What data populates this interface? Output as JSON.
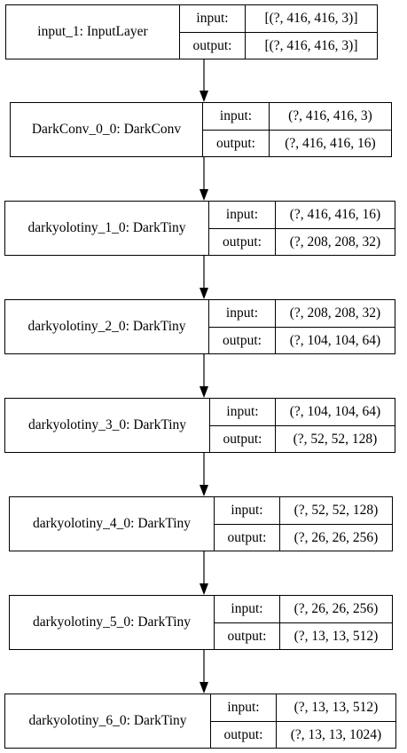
{
  "diagram": {
    "port_labels": {
      "input": "input:",
      "output": "output:"
    },
    "nodes": [
      {
        "name": "input_1: InputLayer",
        "input": "[(?, 416, 416, 3)]",
        "output": "[(?, 416, 416, 3)]"
      },
      {
        "name": "DarkConv_0_0: DarkConv",
        "input": "(?, 416, 416, 3)",
        "output": "(?, 416, 416, 16)"
      },
      {
        "name": "darkyolotiny_1_0: DarkTiny",
        "input": "(?, 416, 416, 16)",
        "output": "(?, 208, 208, 32)"
      },
      {
        "name": "darkyolotiny_2_0: DarkTiny",
        "input": "(?, 208, 208, 32)",
        "output": "(?, 104, 104, 64)"
      },
      {
        "name": "darkyolotiny_3_0: DarkTiny",
        "input": "(?, 104, 104, 64)",
        "output": "(?, 52, 52, 128)"
      },
      {
        "name": "darkyolotiny_4_0: DarkTiny",
        "input": "(?, 52, 52, 128)",
        "output": "(?, 26, 26, 256)"
      },
      {
        "name": "darkyolotiny_5_0: DarkTiny",
        "input": "(?, 26, 26, 256)",
        "output": "(?, 13, 13, 512)"
      },
      {
        "name": "darkyolotiny_6_0: DarkTiny",
        "input": "(?, 13, 13, 512)",
        "output": "(?, 13, 13, 1024)"
      }
    ]
  }
}
